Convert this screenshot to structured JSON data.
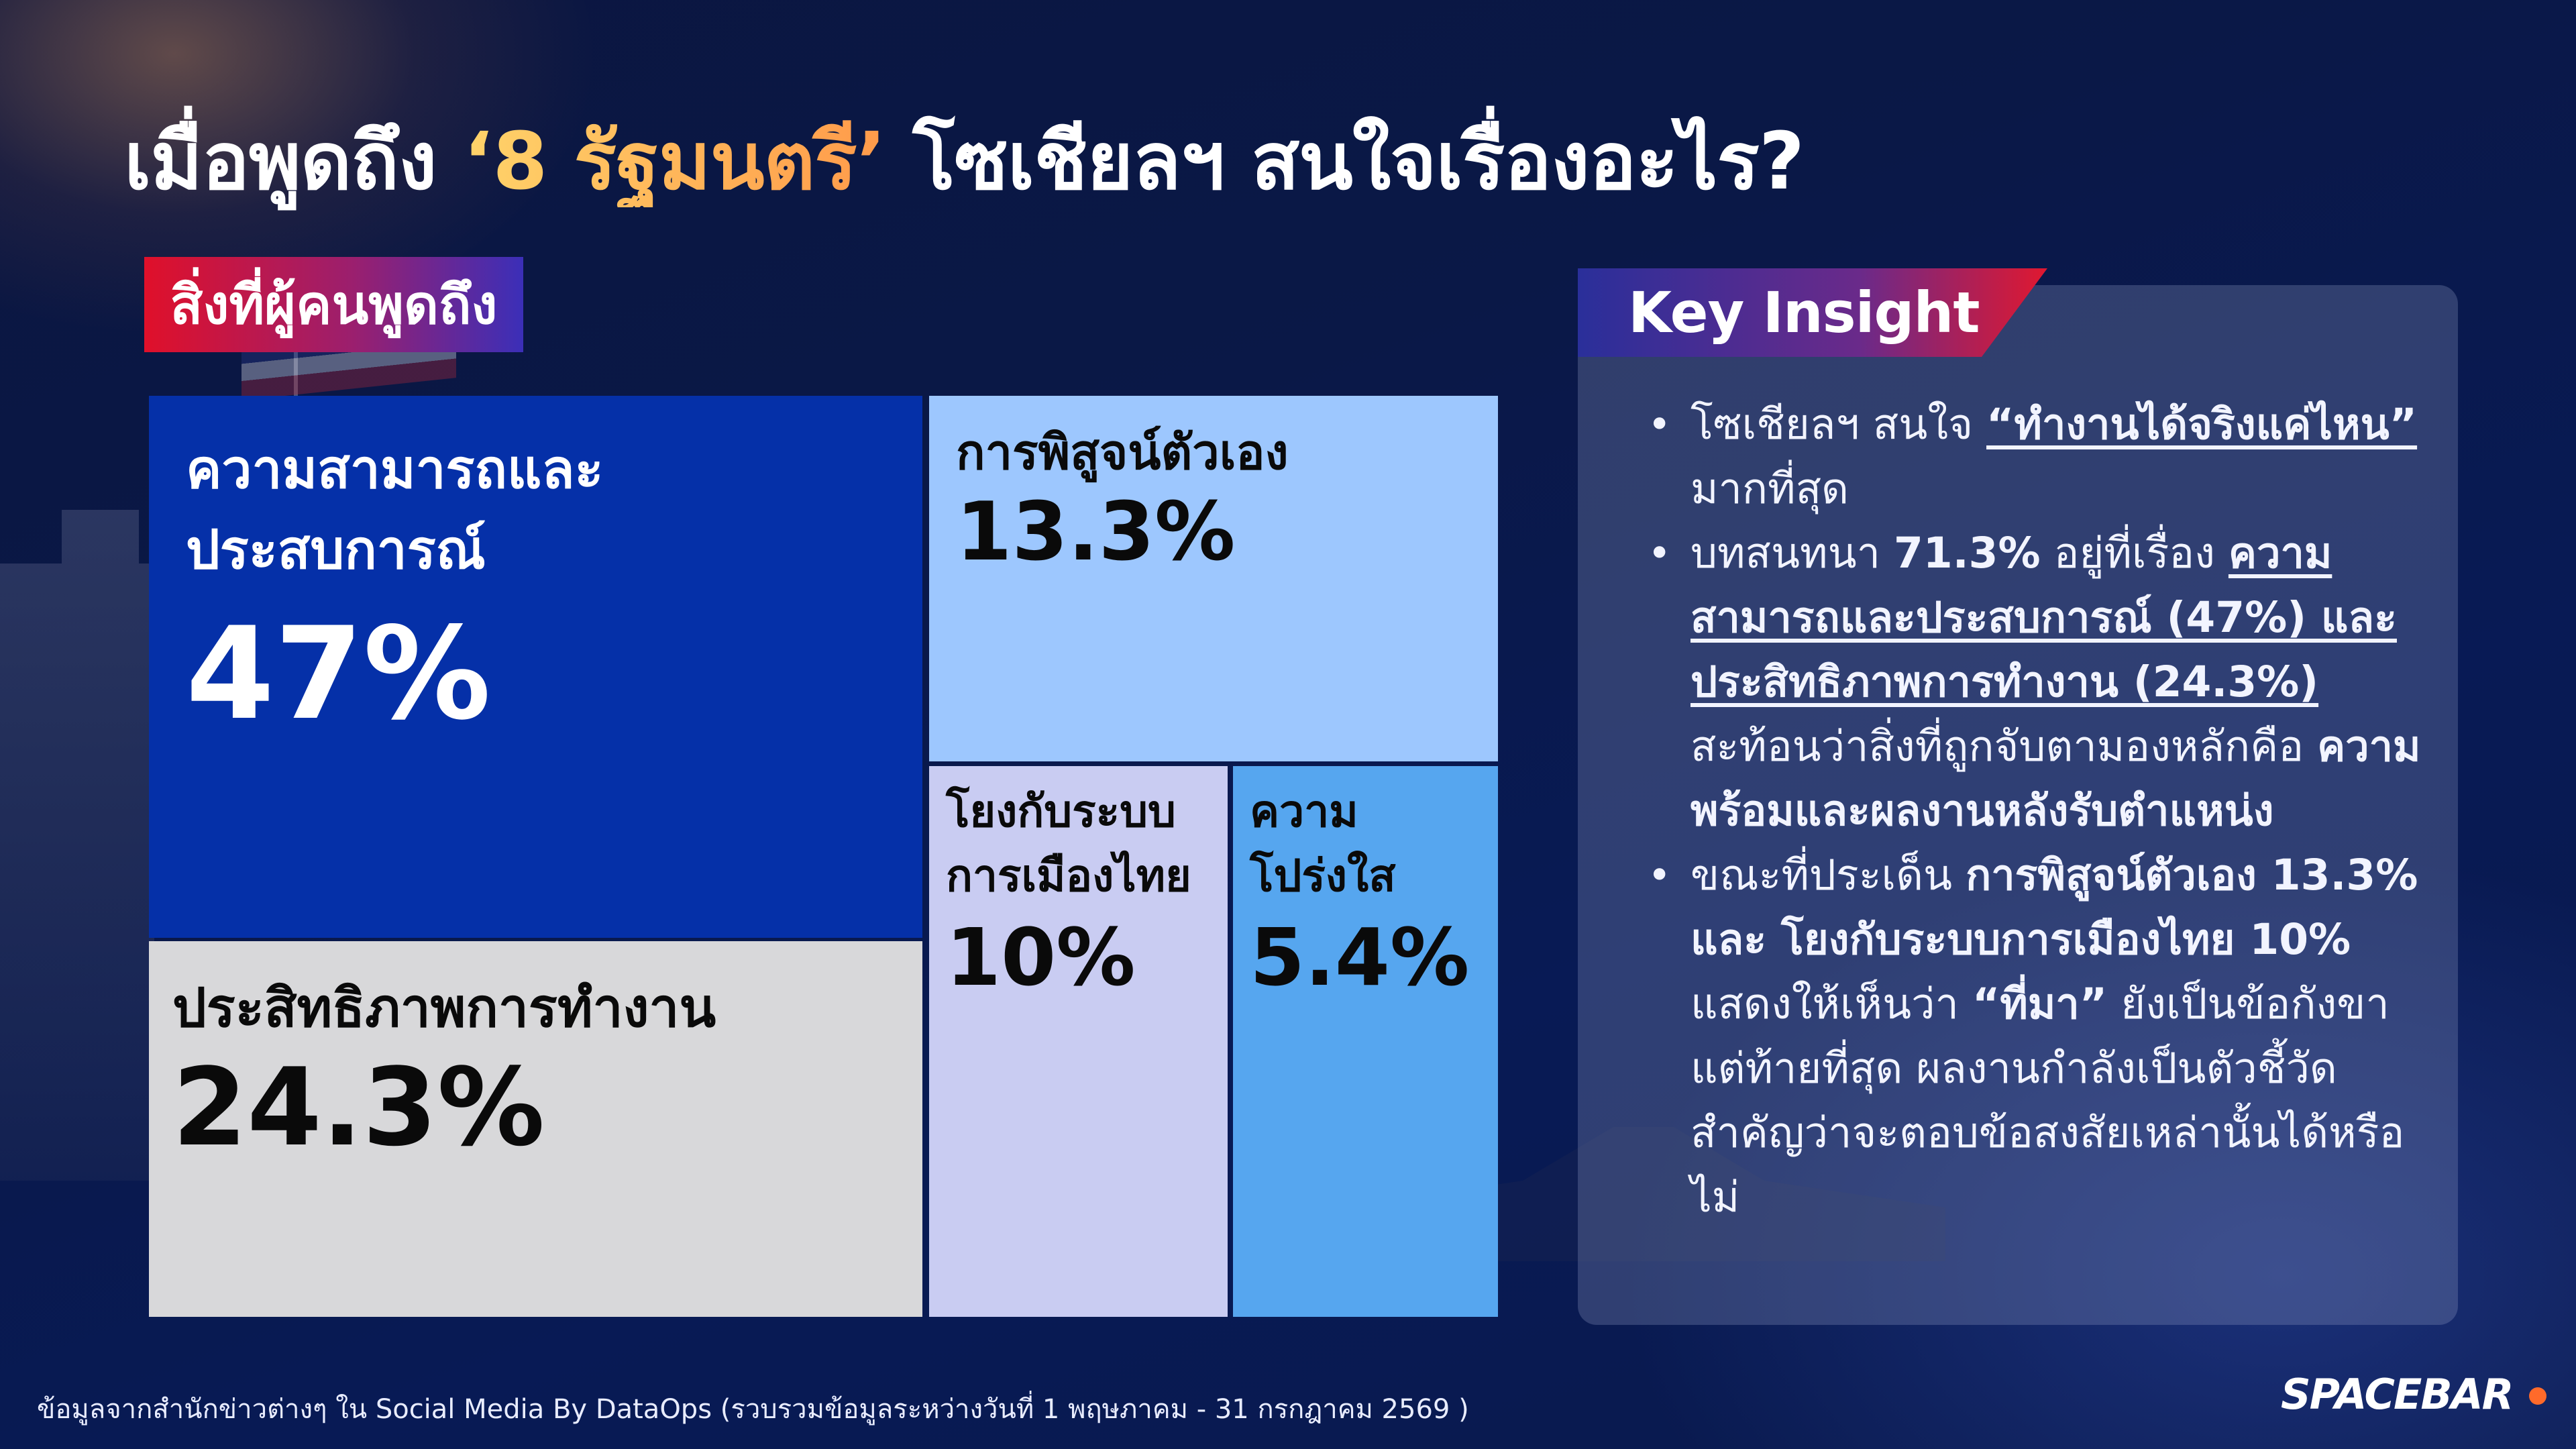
{
  "title": {
    "before": "เมื่อพูดถึง ",
    "highlight": "‘8 รัฐมนตรี’",
    "after": " โซเชียลฯ สนใจเรื่องอะไร?"
  },
  "subtitle": "สิ่งที่ผู้คนพูดถึง",
  "chart_data": {
    "type": "treemap",
    "items": [
      {
        "label": "ความสามารถและประสบการณ์",
        "value": 47,
        "value_text": "47%",
        "color": "#0530a8"
      },
      {
        "label": "ประสิทธิภาพการทำงาน",
        "value": 24.3,
        "value_text": "24.3%",
        "color": "#d8d8da"
      },
      {
        "label": "การพิสูจน์ตัวเอง",
        "value": 13.3,
        "value_text": "13.3%",
        "color": "#9dc7fe"
      },
      {
        "label": "โยงกับระบบการเมืองไทย",
        "value": 10,
        "value_text": "10%",
        "color": "#c9ccf2"
      },
      {
        "label": "ความโปร่งใส",
        "value": 5.4,
        "value_text": "5.4%",
        "color": "#56a6ef"
      }
    ]
  },
  "insight": {
    "heading": "Key Insight",
    "bullets": [
      {
        "parts": [
          {
            "t": "โซเชียลฯ สนใจ ",
            "s": ""
          },
          {
            "t": "“ทำงานได้จริงแค่ไหน”",
            "s": "bu"
          },
          {
            "t": " มากที่สุด",
            "s": ""
          }
        ]
      },
      {
        "parts": [
          {
            "t": "บทสนทนา ",
            "s": ""
          },
          {
            "t": "71.3%",
            "s": "b"
          },
          {
            "t": " อยู่ที่เรื่อง ",
            "s": ""
          },
          {
            "t": "ความสามารถและประสบการณ์ (47%) และ ประสิทธิภาพการทำงาน (24.3%)",
            "s": "bu"
          },
          {
            "t": " สะท้อนว่าสิ่งที่ถูกจับตามองหลักคือ ",
            "s": ""
          },
          {
            "t": "ความพร้อมและผลงานหลังรับตำแหน่ง",
            "s": "b"
          }
        ]
      },
      {
        "parts": [
          {
            "t": "ขณะที่ประเด็น ",
            "s": ""
          },
          {
            "t": "การพิสูจน์ตัวเอง 13.3% และ โยงกับระบบการเมืองไทย 10%",
            "s": "b"
          },
          {
            "t": " แสดงให้เห็นว่า ",
            "s": ""
          },
          {
            "t": "“ที่มา”",
            "s": "b"
          },
          {
            "t": " ยังเป็นข้อกังขา แต่ท้ายที่สุด ผลงานกำลังเป็นตัวชี้วัดสำคัญว่าจะตอบข้อสงสัยเหล่านั้นได้หรือไม่",
            "s": ""
          }
        ]
      }
    ]
  },
  "footer": "ข้อมูลจากสำนักข่าวต่างๆ ใน Social Media By DataOps (รวบรวมข้อมูลระหว่างวันที่ 1 พฤษภาคม - 31 กรกฎาคม 2569 )",
  "logo": "SPACEBAR"
}
